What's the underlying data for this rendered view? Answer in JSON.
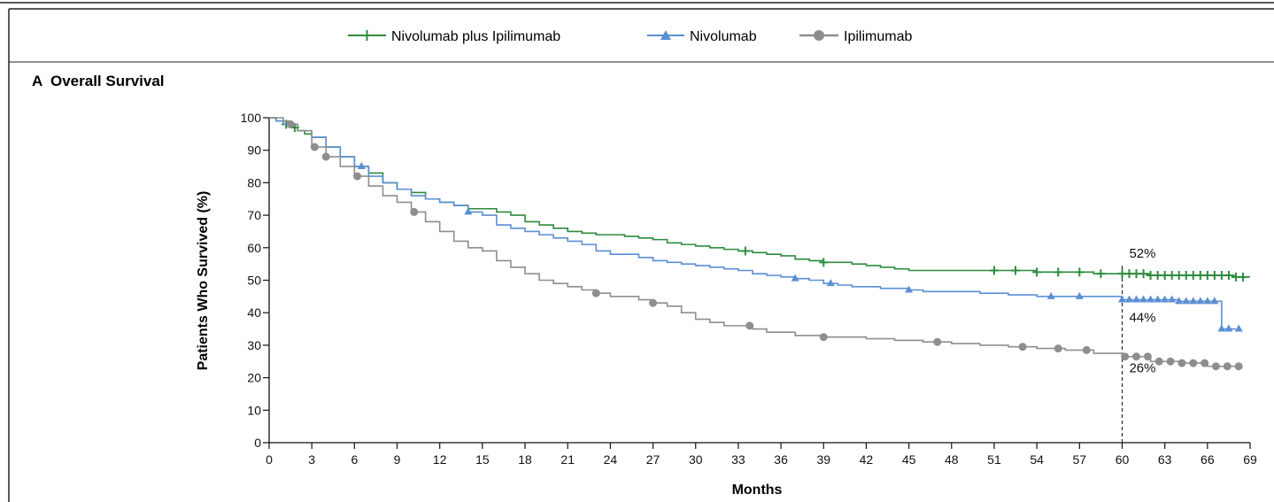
{
  "panel": {
    "letter": "A",
    "title": "Overall Survival"
  },
  "colors": {
    "combo": "#2e8b3e",
    "nivo": "#5b8fd4",
    "ipi": "#8e8e8e",
    "axis": "#111111",
    "frame": "#222222"
  },
  "chart_data": {
    "type": "line",
    "title": "Overall Survival",
    "xlabel": "Months",
    "ylabel": "Patients Who Survived (%)",
    "xlim": [
      0,
      69
    ],
    "ylim": [
      0,
      100
    ],
    "xticks": [
      0,
      3,
      6,
      9,
      12,
      15,
      18,
      21,
      24,
      27,
      30,
      33,
      36,
      39,
      42,
      45,
      48,
      51,
      54,
      57,
      60,
      63,
      66,
      69
    ],
    "yticks": [
      0,
      10,
      20,
      30,
      40,
      50,
      60,
      70,
      80,
      90,
      100
    ],
    "grid": false,
    "legend_position": "top-center",
    "reference_line_x": 60,
    "annotations": [
      {
        "text": "52%",
        "x": 60,
        "y": 52,
        "series": "Nivolumab plus Ipilimumab"
      },
      {
        "text": "44%",
        "x": 60,
        "y": 44,
        "series": "Nivolumab"
      },
      {
        "text": "26%",
        "x": 60,
        "y": 26,
        "series": "Ipilimumab"
      }
    ],
    "series": [
      {
        "name": "Nivolumab plus Ipilimumab",
        "marker": "plus",
        "color": "#2e8b3e",
        "x": [
          0,
          0.5,
          1,
          1.5,
          2,
          2.5,
          3,
          4,
          5,
          6,
          7,
          8,
          9,
          10,
          11,
          12,
          13,
          14,
          15,
          16,
          17,
          18,
          19,
          20,
          21,
          22,
          23,
          24,
          25,
          26,
          27,
          28,
          29,
          30,
          31,
          32,
          33,
          34,
          35,
          36,
          37,
          38,
          39,
          40,
          41,
          42,
          43,
          44,
          45,
          46,
          47,
          48,
          49,
          50,
          51,
          52,
          54,
          56,
          58,
          60,
          62,
          64,
          66,
          68,
          69
        ],
        "y": [
          100,
          99,
          98,
          97,
          96,
          95,
          94,
          91,
          88,
          85,
          83,
          80,
          78,
          77,
          75,
          74,
          73,
          72,
          72,
          71,
          70,
          68,
          67,
          66,
          65,
          64.5,
          64,
          64,
          63.5,
          63,
          62.5,
          61.5,
          61,
          60.5,
          60,
          59.5,
          59,
          58.5,
          58,
          57.5,
          56.5,
          56,
          55.5,
          55.5,
          55,
          54.5,
          54,
          53.5,
          53,
          53,
          53,
          53,
          53,
          53,
          53,
          53,
          52.5,
          52.5,
          52,
          52,
          51.5,
          51.5,
          51.5,
          51,
          51
        ],
        "censor_x": [
          1.2,
          1.8,
          33.5,
          39,
          51,
          52.5,
          54,
          55.5,
          57,
          58.5,
          60,
          60.5,
          61,
          61.5,
          62,
          62.5,
          63,
          63.5,
          64,
          64.5,
          65,
          65.5,
          66,
          66.5,
          67,
          67.5,
          68,
          68.5
        ]
      },
      {
        "name": "Nivolumab",
        "marker": "triangle",
        "color": "#5b8fd4",
        "x": [
          0,
          0.5,
          1,
          2,
          3,
          4,
          5,
          6,
          7,
          8,
          9,
          10,
          11,
          12,
          13,
          14,
          15,
          16,
          17,
          18,
          19,
          20,
          21,
          22,
          23,
          24,
          25,
          26,
          27,
          28,
          29,
          30,
          31,
          32,
          33,
          34,
          35,
          36,
          37,
          38,
          39,
          40,
          41,
          42,
          43,
          44,
          45,
          46,
          48,
          50,
          52,
          54,
          56,
          58,
          60,
          62,
          64,
          66,
          66.9,
          67,
          68
        ],
        "y": [
          100,
          99,
          98,
          96,
          94,
          91,
          88,
          85,
          82,
          80,
          78,
          76,
          75,
          74,
          73,
          71,
          70,
          67,
          66,
          65,
          64,
          63,
          62,
          61,
          59,
          58,
          58,
          57,
          56,
          55.5,
          55,
          54.5,
          54,
          53.5,
          53,
          52,
          51.5,
          51,
          50.5,
          50,
          49,
          48.5,
          48,
          48,
          47.5,
          47.5,
          47,
          46.5,
          46.5,
          46,
          45.5,
          45,
          45,
          45,
          44,
          44,
          43.5,
          43.5,
          43.5,
          35,
          35
        ],
        "censor_x": [
          6.5,
          14,
          37,
          39.5,
          45,
          55,
          57,
          60,
          60.5,
          61,
          61.5,
          62,
          62.5,
          63,
          63.5,
          64,
          64.5,
          65,
          65.5,
          66,
          66.5,
          67,
          67.5,
          68.2
        ]
      },
      {
        "name": "Ipilimumab",
        "marker": "circle",
        "color": "#8e8e8e",
        "x": [
          0,
          0.5,
          1,
          1.5,
          2,
          3,
          4,
          5,
          6,
          7,
          8,
          9,
          10,
          11,
          12,
          13,
          14,
          15,
          16,
          17,
          18,
          19,
          20,
          21,
          22,
          23,
          24,
          25,
          26,
          27,
          28,
          29,
          30,
          31,
          32,
          33,
          34,
          35,
          36,
          37,
          38,
          39,
          40,
          42,
          44,
          46,
          48,
          50,
          52,
          54,
          56,
          58,
          60,
          62,
          64,
          66,
          68
        ],
        "y": [
          100,
          100,
          99,
          98,
          96,
          91,
          88,
          85,
          82,
          79,
          76,
          74,
          71,
          68,
          65,
          62,
          60,
          59,
          56,
          54,
          52,
          50,
          49,
          48,
          47,
          46,
          45,
          45,
          44,
          43,
          42,
          40,
          38,
          37,
          36,
          36,
          35,
          34,
          34,
          33,
          33,
          32.5,
          32.5,
          32,
          31.5,
          31,
          30.5,
          30,
          29.5,
          29,
          28.5,
          27.5,
          26.5,
          25,
          24.5,
          23.5,
          23.5
        ],
        "censor_x": [
          1.5,
          3.2,
          4,
          6.2,
          10.2,
          23,
          27,
          33.8,
          39,
          47,
          53,
          55.5,
          57.5,
          60.2,
          61,
          61.8,
          62.6,
          63.4,
          64.2,
          65,
          65.8,
          66.6,
          67.4,
          68.2
        ]
      }
    ]
  }
}
